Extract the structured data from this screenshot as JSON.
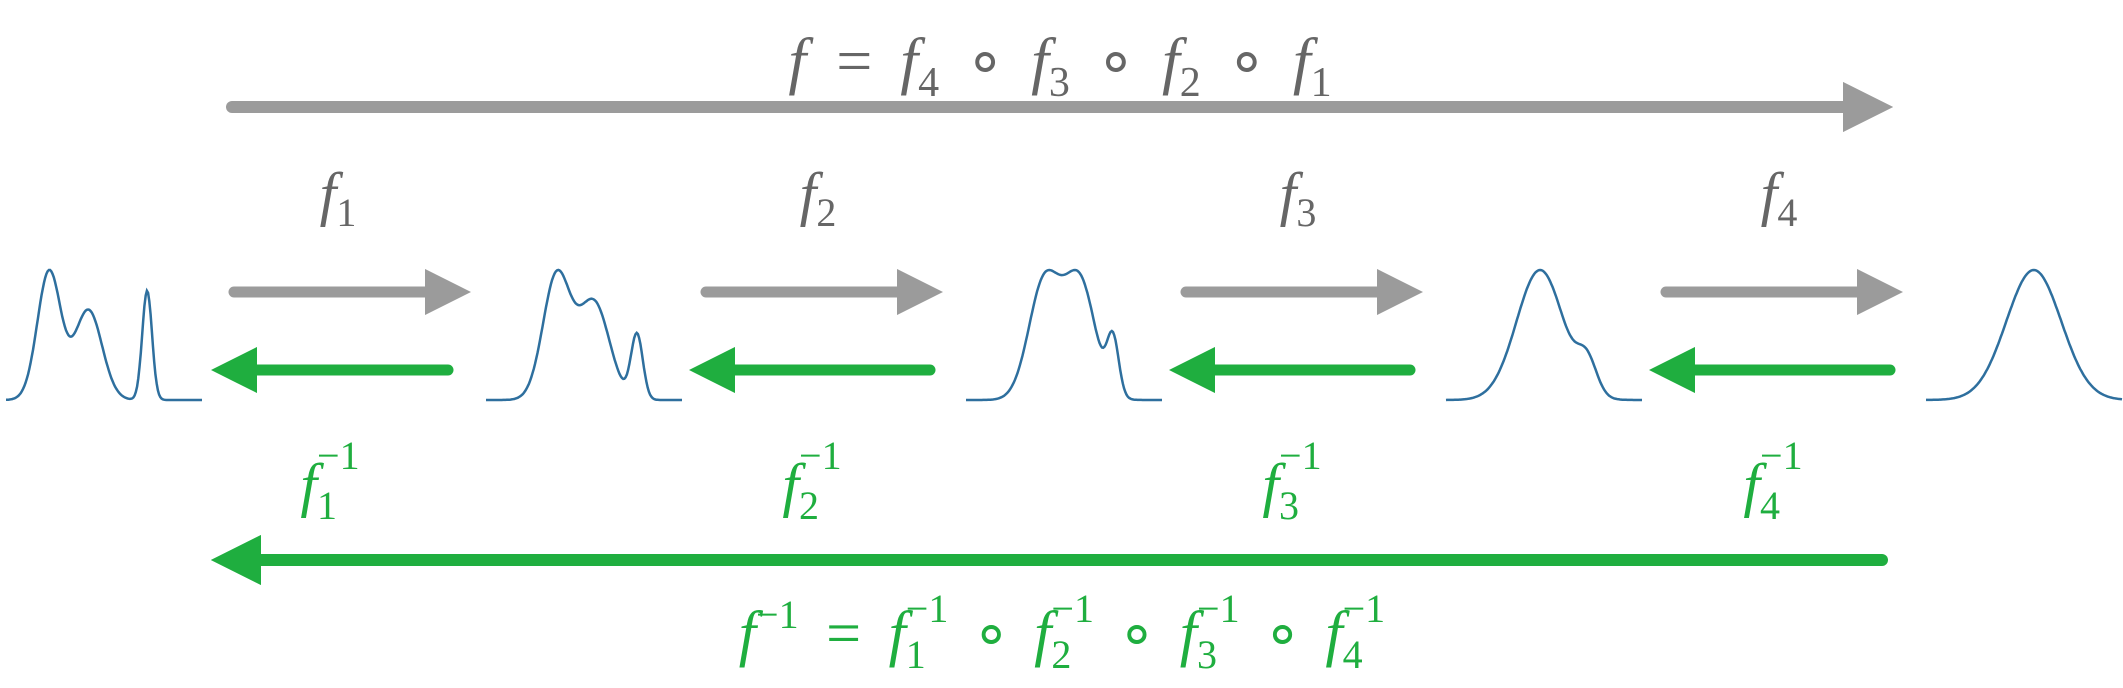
{
  "colors": {
    "forward": "#9b9b9b",
    "forward_text": "#666666",
    "inverse": "#1fae3f",
    "curve": "#2e6f9e",
    "background": "#ffffff"
  },
  "top_formula": {
    "lhs": "f",
    "eq": "=",
    "terms": [
      {
        "base": "f",
        "sub": "4"
      },
      {
        "base": "f",
        "sub": "3"
      },
      {
        "base": "f",
        "sub": "2"
      },
      {
        "base": "f",
        "sub": "1"
      }
    ],
    "op": "∘"
  },
  "bottom_formula": {
    "lhs_base": "f",
    "lhs_sup": "−1",
    "eq": "=",
    "terms": [
      {
        "base": "f",
        "sub": "1",
        "sup": "−1"
      },
      {
        "base": "f",
        "sub": "2",
        "sup": "−1"
      },
      {
        "base": "f",
        "sub": "3",
        "sup": "−1"
      },
      {
        "base": "f",
        "sub": "4",
        "sup": "−1"
      }
    ],
    "op": "∘"
  },
  "steps": [
    {
      "fwd_base": "f",
      "fwd_sub": "1",
      "inv_base": "f",
      "inv_sub": "1",
      "inv_sup": "−1"
    },
    {
      "fwd_base": "f",
      "fwd_sub": "2",
      "inv_base": "f",
      "inv_sub": "2",
      "inv_sup": "−1"
    },
    {
      "fwd_base": "f",
      "fwd_sub": "3",
      "inv_base": "f",
      "inv_sub": "3",
      "inv_sup": "−1"
    },
    {
      "fwd_base": "f",
      "fwd_sub": "4",
      "inv_base": "f",
      "inv_sub": "4",
      "inv_sup": "−1"
    }
  ],
  "distributions": [
    {
      "name": "trimodal-complex",
      "peaks": [
        [
          0.22,
          0.06,
          1.0
        ],
        [
          0.42,
          0.07,
          0.7
        ],
        [
          0.72,
          0.025,
          0.85
        ]
      ]
    },
    {
      "name": "trimodal-merging",
      "peaks": [
        [
          0.36,
          0.07,
          0.95
        ],
        [
          0.55,
          0.08,
          0.75
        ],
        [
          0.77,
          0.03,
          0.5
        ]
      ]
    },
    {
      "name": "bimodal-plus-bump",
      "peaks": [
        [
          0.4,
          0.08,
          0.95
        ],
        [
          0.58,
          0.08,
          0.95
        ],
        [
          0.75,
          0.03,
          0.45
        ]
      ]
    },
    {
      "name": "near-gaussian-shoulder",
      "peaks": [
        [
          0.48,
          0.12,
          1.0
        ],
        [
          0.72,
          0.05,
          0.25
        ]
      ]
    },
    {
      "name": "gaussian",
      "peaks": [
        [
          0.55,
          0.14,
          1.0
        ]
      ]
    }
  ]
}
